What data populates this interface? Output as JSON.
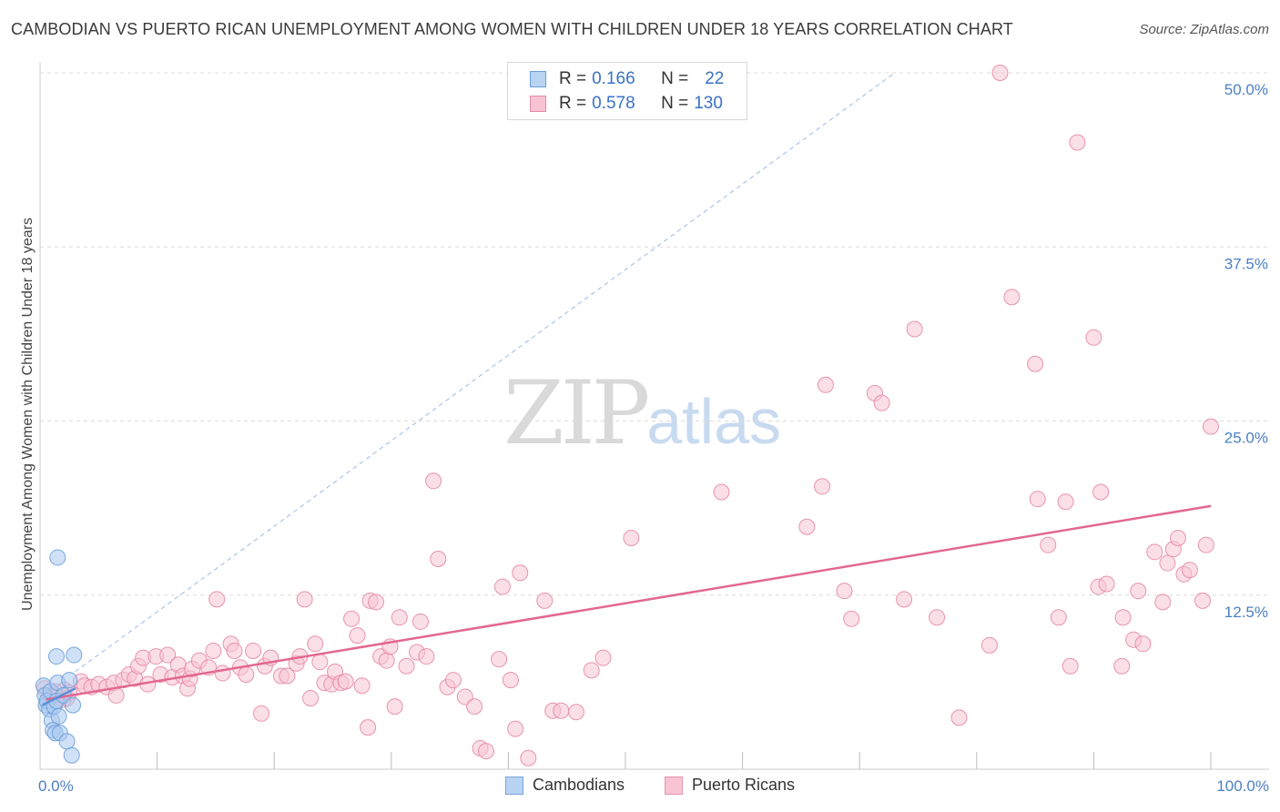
{
  "title": "CAMBODIAN VS PUERTO RICAN UNEMPLOYMENT AMONG WOMEN WITH CHILDREN UNDER 18 YEARS CORRELATION CHART",
  "source": "Source: ZipAtlas.com",
  "watermark": {
    "zip": "ZIP",
    "atlas": "atlas"
  },
  "legend": {
    "rows": [
      {
        "r_label": "R = ",
        "r_value": "0.166",
        "n_label": "N = ",
        "n_value": "22",
        "color": "#a9c8f0",
        "border": "#6a9ed8"
      },
      {
        "r_label": "R = ",
        "r_value": "0.578",
        "n_label": "N = ",
        "n_value": "130",
        "color": "#f7b9cb",
        "border": "#e58aa6"
      }
    ]
  },
  "bottom_legend": [
    {
      "label": "Cambodians",
      "color": "#b9d3f3",
      "border": "#7aa6dc"
    },
    {
      "label": "Puerto Ricans",
      "color": "#f8c4d3",
      "border": "#e694ae"
    }
  ],
  "chart_data": {
    "type": "scatter",
    "title": "CAMBODIAN VS PUERTO RICAN UNEMPLOYMENT AMONG WOMEN WITH CHILDREN UNDER 18 YEARS CORRELATION CHART",
    "xlabel": "",
    "ylabel": "Unemployment Among Women with Children Under 18 years",
    "xlim": [
      0,
      100
    ],
    "ylim": [
      0,
      50
    ],
    "x_tick_labels": [
      "0.0%",
      "100.0%"
    ],
    "y_ticks": [
      12.5,
      25.0,
      37.5,
      50.0
    ],
    "y_tick_labels": [
      "12.5%",
      "25.0%",
      "37.5%",
      "50.0%"
    ],
    "grid": "horizontal dashed",
    "legend_placement": "top-center",
    "series": [
      {
        "name": "Cambodians",
        "color": "#a9c8f0",
        "stroke": "#6a9ed8",
        "points": [
          [
            0.3,
            6.0
          ],
          [
            0.4,
            5.3
          ],
          [
            0.5,
            4.6
          ],
          [
            0.6,
            4.9
          ],
          [
            0.8,
            4.3
          ],
          [
            0.9,
            5.6
          ],
          [
            1.0,
            3.5
          ],
          [
            1.1,
            2.8
          ],
          [
            1.2,
            4.5
          ],
          [
            1.3,
            2.6
          ],
          [
            1.4,
            4.9
          ],
          [
            1.5,
            6.2
          ],
          [
            1.6,
            3.8
          ],
          [
            1.7,
            2.6
          ],
          [
            1.4,
            8.1
          ],
          [
            1.5,
            15.2
          ],
          [
            2.0,
            5.3
          ],
          [
            2.3,
            2.0
          ],
          [
            2.5,
            6.4
          ],
          [
            2.7,
            1.0
          ],
          [
            2.8,
            4.6
          ],
          [
            2.9,
            8.2
          ]
        ],
        "trend": {
          "x": [
            0.2,
            3.0
          ],
          "y": [
            4.6,
            5.8
          ]
        },
        "ci_line": {
          "x": [
            3.0,
            73.0
          ],
          "y": [
            7.0,
            50.0
          ]
        }
      },
      {
        "name": "Puerto Ricans",
        "color": "#f8c4d3",
        "stroke": "#e58aa6",
        "points": [
          [
            0.4,
            5.8
          ],
          [
            0.9,
            5.2
          ],
          [
            1.3,
            5.6
          ],
          [
            1.6,
            5.4
          ],
          [
            2.0,
            5.0
          ],
          [
            2.1,
            5.7
          ],
          [
            2.3,
            5.1
          ],
          [
            2.5,
            5.5
          ],
          [
            3.5,
            6.3
          ],
          [
            3.8,
            6.0
          ],
          [
            4.4,
            5.9
          ],
          [
            5.0,
            6.1
          ],
          [
            5.7,
            5.9
          ],
          [
            6.3,
            6.2
          ],
          [
            6.5,
            5.3
          ],
          [
            7.1,
            6.4
          ],
          [
            7.6,
            6.8
          ],
          [
            8.1,
            6.5
          ],
          [
            8.4,
            7.4
          ],
          [
            8.8,
            8.0
          ],
          [
            9.2,
            6.1
          ],
          [
            9.9,
            8.1
          ],
          [
            10.3,
            6.8
          ],
          [
            10.9,
            8.2
          ],
          [
            11.3,
            6.6
          ],
          [
            11.8,
            7.5
          ],
          [
            12.2,
            6.7
          ],
          [
            12.6,
            5.8
          ],
          [
            12.8,
            6.5
          ],
          [
            13.0,
            7.2
          ],
          [
            13.6,
            7.8
          ],
          [
            14.4,
            7.3
          ],
          [
            14.8,
            8.5
          ],
          [
            15.1,
            12.2
          ],
          [
            15.6,
            6.9
          ],
          [
            16.3,
            9.0
          ],
          [
            16.6,
            8.5
          ],
          [
            17.1,
            7.3
          ],
          [
            17.6,
            6.8
          ],
          [
            18.2,
            8.5
          ],
          [
            18.9,
            4.0
          ],
          [
            19.2,
            7.4
          ],
          [
            19.7,
            8.0
          ],
          [
            20.6,
            6.7
          ],
          [
            21.1,
            6.7
          ],
          [
            21.9,
            7.6
          ],
          [
            22.2,
            8.1
          ],
          [
            22.6,
            12.2
          ],
          [
            23.1,
            5.1
          ],
          [
            23.5,
            9.0
          ],
          [
            23.9,
            7.7
          ],
          [
            24.3,
            6.2
          ],
          [
            24.9,
            6.1
          ],
          [
            25.2,
            7.0
          ],
          [
            25.7,
            6.2
          ],
          [
            26.1,
            6.3
          ],
          [
            26.6,
            10.8
          ],
          [
            27.1,
            9.6
          ],
          [
            27.5,
            6.0
          ],
          [
            28.0,
            3.0
          ],
          [
            28.2,
            12.1
          ],
          [
            28.7,
            12.0
          ],
          [
            29.1,
            8.1
          ],
          [
            29.6,
            7.8
          ],
          [
            29.9,
            8.8
          ],
          [
            30.3,
            4.5
          ],
          [
            30.7,
            10.9
          ],
          [
            31.3,
            7.4
          ],
          [
            32.2,
            8.4
          ],
          [
            32.5,
            10.6
          ],
          [
            33.0,
            8.1
          ],
          [
            34.0,
            15.1
          ],
          [
            33.6,
            20.7
          ],
          [
            34.8,
            5.9
          ],
          [
            35.3,
            6.4
          ],
          [
            36.3,
            5.2
          ],
          [
            37.1,
            4.5
          ],
          [
            37.6,
            1.5
          ],
          [
            38.1,
            1.3
          ],
          [
            39.2,
            7.9
          ],
          [
            39.5,
            13.1
          ],
          [
            40.2,
            6.4
          ],
          [
            40.6,
            2.9
          ],
          [
            41.0,
            14.1
          ],
          [
            41.7,
            0.8
          ],
          [
            43.1,
            12.1
          ],
          [
            43.8,
            4.2
          ],
          [
            44.5,
            4.2
          ],
          [
            45.8,
            4.1
          ],
          [
            47.1,
            7.1
          ],
          [
            48.1,
            8.0
          ],
          [
            50.5,
            16.6
          ],
          [
            58.2,
            19.9
          ],
          [
            65.5,
            17.4
          ],
          [
            66.8,
            20.3
          ],
          [
            67.1,
            27.6
          ],
          [
            68.7,
            12.8
          ],
          [
            69.3,
            10.8
          ],
          [
            71.3,
            27.0
          ],
          [
            71.9,
            26.3
          ],
          [
            73.8,
            12.2
          ],
          [
            74.7,
            31.6
          ],
          [
            76.6,
            10.9
          ],
          [
            78.5,
            3.7
          ],
          [
            81.1,
            8.9
          ],
          [
            82.0,
            50.0
          ],
          [
            83.0,
            33.9
          ],
          [
            85.0,
            29.1
          ],
          [
            85.2,
            19.4
          ],
          [
            86.1,
            16.1
          ],
          [
            87.0,
            10.9
          ],
          [
            87.6,
            19.2
          ],
          [
            88.0,
            7.4
          ],
          [
            88.6,
            45.0
          ],
          [
            90.0,
            31.0
          ],
          [
            90.4,
            13.1
          ],
          [
            90.6,
            19.9
          ],
          [
            91.1,
            13.3
          ],
          [
            92.5,
            10.9
          ],
          [
            92.4,
            7.4
          ],
          [
            93.4,
            9.3
          ],
          [
            93.8,
            12.8
          ],
          [
            94.2,
            9.0
          ],
          [
            95.2,
            15.6
          ],
          [
            95.9,
            12.0
          ],
          [
            96.3,
            14.8
          ],
          [
            96.8,
            15.8
          ],
          [
            97.2,
            16.6
          ],
          [
            97.7,
            14.0
          ],
          [
            98.2,
            14.3
          ],
          [
            99.3,
            12.1
          ],
          [
            99.6,
            16.1
          ],
          [
            100.0,
            24.6
          ]
        ],
        "trend": {
          "x": [
            0.5,
            100.0
          ],
          "y": [
            5.0,
            18.9
          ]
        }
      }
    ]
  }
}
